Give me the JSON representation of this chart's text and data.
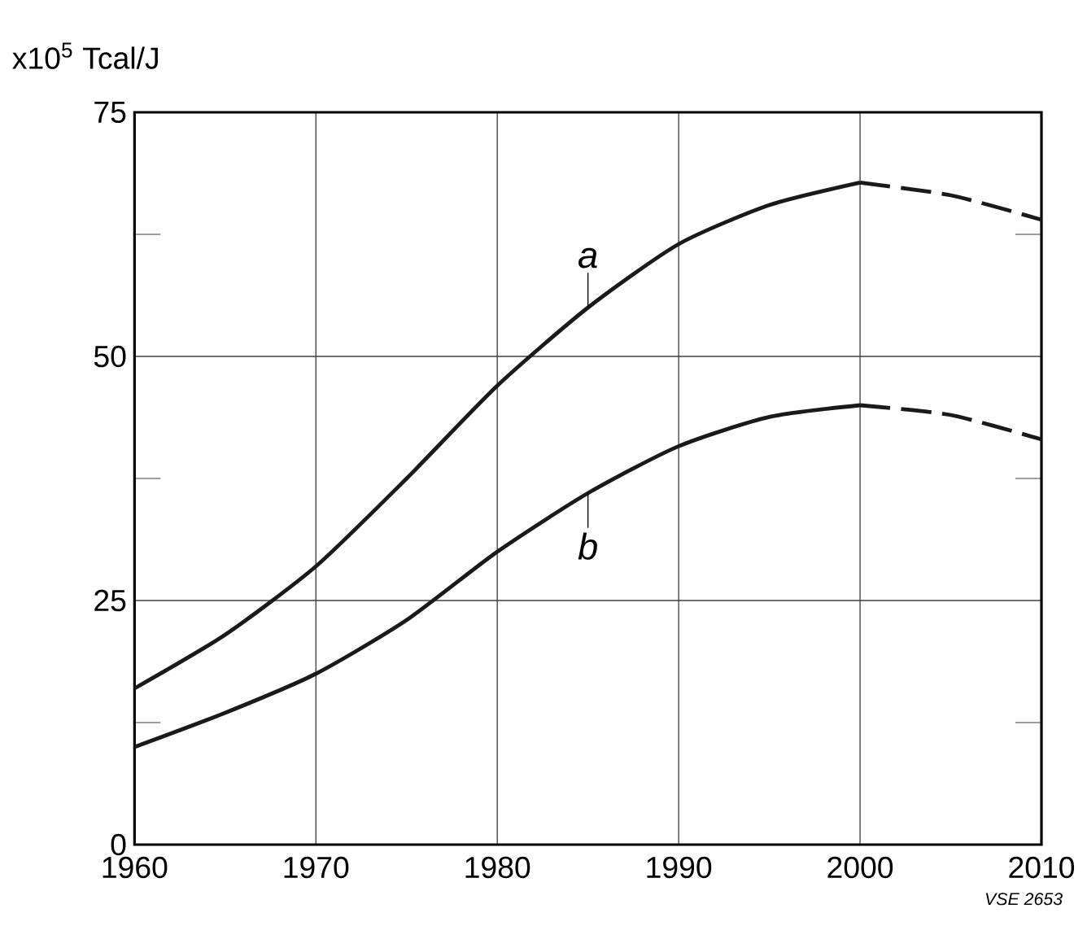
{
  "chart_data": {
    "type": "line",
    "ylabel": "x10$^{5}$ Tcal/J",
    "xlim": [
      1960,
      2010
    ],
    "xticks": [
      1960,
      1970,
      1980,
      1990,
      2000,
      2010
    ],
    "ylim": [
      0,
      75
    ],
    "yticks": [
      0,
      {
        "value": 12.5,
        "label": null
      },
      25,
      {
        "value": 37.5,
        "label": null
      },
      50,
      {
        "value": 62.5,
        "label": null
      },
      75
    ],
    "grid": true,
    "marker": "none",
    "series": [
      {
        "color": "#1a1a1a",
        "line_style": "solid",
        "x": [
          1960,
          1965,
          1970,
          1975,
          1980,
          1985,
          1990,
          1995,
          2000
        ],
        "values": [
          16,
          21.5,
          28.5,
          37.5,
          47,
          55,
          61.5,
          65.5,
          67.8
        ]
      },
      {
        "color": "#1a1a1a",
        "line_style": "dashed",
        "x": [
          2000,
          2005,
          2010
        ],
        "values": [
          67.8,
          66.5,
          64
        ]
      },
      {
        "color": "#1a1a1a",
        "line_style": "solid",
        "x": [
          1960,
          1965,
          1970,
          1975,
          1980,
          1985,
          1990,
          1995,
          2000
        ],
        "values": [
          10,
          13.5,
          17.5,
          23,
          30,
          36,
          40.8,
          43.8,
          45
        ]
      },
      {
        "color": "#1a1a1a",
        "line_style": "dashed",
        "x": [
          2000,
          2005,
          2010
        ],
        "values": [
          45,
          44,
          41.5
        ]
      }
    ],
    "annotations": [
      {
        "text": "a",
        "x": 1985,
        "y": 55
      },
      {
        "text": "b",
        "x": 1985,
        "y": 36
      },
      "VSE 2653"
    ]
  }
}
